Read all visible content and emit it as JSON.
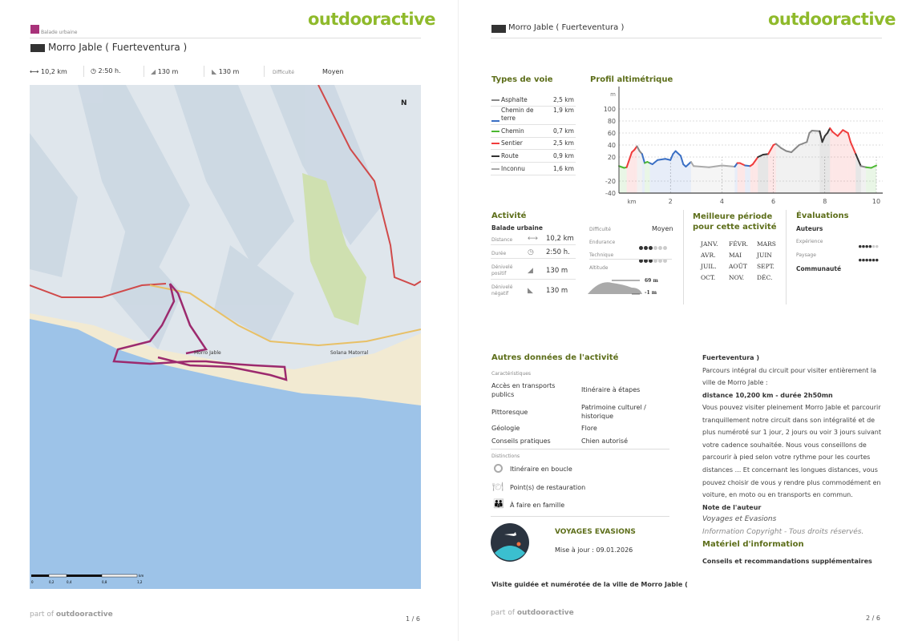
{
  "brand": "outdooractive",
  "page1": {
    "category": "Balade urbaine",
    "title": "Morro Jable ( Fuerteventura )",
    "stats": {
      "distance": "10,2 km",
      "duration": "2:50 h.",
      "ascent": "130 m",
      "descent": "130 m",
      "difficulty_label": "Difficulté",
      "difficulty": "Moyen"
    },
    "map": {
      "scale_labels": [
        "0",
        "0,2",
        "0,4",
        "0,8",
        "1,2"
      ],
      "scale_unit": "km",
      "place_label": "Morro Jable",
      "place_label2": "Solana Matorral",
      "north": "N"
    },
    "footer": {
      "part_of": "part of",
      "brand": "outdooractive",
      "page": "1 / 6"
    }
  },
  "page2": {
    "title": "Morro Jable ( Fuerteventura )",
    "types_de_voie": {
      "heading": "Types de voie",
      "items": [
        {
          "label": "Asphalte",
          "value": "2,5 km",
          "color": "#888888"
        },
        {
          "label": "Chemin de terre",
          "value": "1,9 km",
          "color": "#3a6fc4"
        },
        {
          "label": "Chemin",
          "value": "0,7 km",
          "color": "#4cb832"
        },
        {
          "label": "Sentier",
          "value": "2,5 km",
          "color": "#f03c3c"
        },
        {
          "label": "Route",
          "value": "0,9 km",
          "color": "#333333"
        },
        {
          "label": "Inconnu",
          "value": "1,6 km",
          "color": "#aaaaaa"
        }
      ]
    },
    "activite": {
      "heading": "Activité",
      "type": "Balade urbaine",
      "rows": [
        {
          "label": "Distance",
          "value": "10,2 km"
        },
        {
          "label": "Durée",
          "value": "2:50 h."
        },
        {
          "label": "Dénivelé positif",
          "value": "130 m"
        },
        {
          "label": "Dénivelé négatif",
          "value": "130 m"
        }
      ],
      "difficulty_label": "Difficulté",
      "difficulty": "Moyen",
      "endurance_label": "Endurance",
      "endurance": 3,
      "technique_label": "Technique",
      "technique": 3,
      "altitude_label": "Altitude",
      "alt_max": "69 m",
      "alt_min": "-1 m"
    },
    "periode": {
      "heading": "Meilleure période pour cette activité",
      "months": [
        "JANV.",
        "FÉVR.",
        "MARS",
        "AVR.",
        "MAI",
        "JUIN",
        "JUIL.",
        "AOÛT",
        "SEPT.",
        "OCT.",
        "NOV.",
        "DÉC."
      ]
    },
    "evaluations": {
      "heading": "Évaluations",
      "auteurs": "Auteurs",
      "experience_label": "Expérience",
      "experience": 4,
      "paysage_label": "Paysage",
      "paysage": 6,
      "communaute": "Communauté"
    },
    "autres": {
      "heading": "Autres données de l'activité",
      "caracteristiques_label": "Caractéristiques",
      "caracteristiques": [
        "Accès en transports publics",
        "Itinéraire à étapes",
        "Pittoresque",
        "Patrimoine culturel / historique",
        "Géologie",
        "Flore",
        "Conseils pratiques",
        "Chien autorisé"
      ],
      "distinctions_label": "Distinctions",
      "distinctions": [
        "Itinéraire en boucle",
        "Point(s) de restauration",
        "À faire en famille"
      ]
    },
    "author": {
      "name": "VOYAGES EVASIONS",
      "updated": "Mise à jour : 09.01.2026"
    },
    "description": {
      "intro": "Visite guidée et numérotée de la ville de Morro Jable (",
      "intro_cont": "Fuerteventura )",
      "p1": "Parcours intégral du circuit pour visiter entièrement la ville de Morro Jable :",
      "p2": "distance 10,200 km - durée 2h50mn",
      "p3": " Vous pouvez visiter pleinement Morro Jable et parcourir tranquillement notre circuit dans son intégralité et de plus numéroté sur 1 jour, 2 jours ou voir 3 jours suivant votre cadence souhaitée. Nous vous conseillons de parcourir à pied selon votre rythme pour les courtes distances ... Et concernant les longues distances, vous pouvez choisir de vous y rendre plus commodément en voiture, en moto ou en transports en commun.",
      "note_label": "Note de l'auteur",
      "note_author": "Voyages et Evasions",
      "copyright": "Information Copyright - Tous droits réservés.",
      "materiel_heading": "Matériel d'information",
      "materiel": "Conseils et recommandations supplémentaires"
    },
    "footer": {
      "part_of": "part of",
      "brand": "outdooractive",
      "page": "2 / 6"
    }
  },
  "chart_data": {
    "type": "line",
    "title": "Profil altimétrique",
    "ylabel": "m",
    "xlabel": "km",
    "xlim": [
      0,
      10
    ],
    "ylim": [
      -40,
      100
    ],
    "yticks": [
      100,
      80,
      60,
      40,
      20,
      -20,
      -40
    ],
    "xticks": [
      2,
      4,
      6,
      8,
      10
    ],
    "grid": true,
    "x": [
      0,
      0.2,
      0.3,
      0.5,
      0.6,
      0.7,
      0.8,
      0.9,
      1.0,
      1.1,
      1.2,
      1.3,
      1.5,
      1.8,
      2.0,
      2.1,
      2.2,
      2.4,
      2.5,
      2.6,
      2.8,
      2.9,
      3.5,
      4.0,
      4.5,
      4.6,
      4.7,
      4.9,
      5.1,
      5.2,
      5.4,
      5.6,
      5.8,
      6.0,
      6.1,
      6.3,
      6.5,
      6.7,
      7.0,
      7.3,
      7.4,
      7.5,
      7.8,
      7.9,
      8.0,
      8.1,
      8.2,
      8.3,
      8.5,
      8.7,
      8.9,
      9.0,
      9.2,
      9.4,
      9.6,
      9.8,
      10.0
    ],
    "y": [
      5,
      2,
      3,
      28,
      32,
      38,
      30,
      25,
      10,
      12,
      10,
      8,
      15,
      17,
      15,
      25,
      30,
      22,
      8,
      4,
      12,
      5,
      3,
      6,
      4,
      10,
      10,
      6,
      5,
      8,
      20,
      24,
      25,
      40,
      42,
      35,
      30,
      28,
      40,
      45,
      60,
      64,
      63,
      45,
      55,
      60,
      68,
      62,
      55,
      65,
      60,
      45,
      25,
      5,
      3,
      2,
      6
    ],
    "segment_types": [
      "Chemin",
      "Chemin",
      "Sentier",
      "Sentier",
      "Sentier",
      "Asphalte",
      "Asphalte",
      "Chemin de terre",
      "Chemin",
      "Chemin",
      "Chemin de terre",
      "Chemin de terre",
      "Chemin de terre",
      "Chemin de terre",
      "Chemin de terre",
      "Chemin de terre",
      "Chemin de terre",
      "Chemin de terre",
      "Chemin de terre",
      "Chemin de terre",
      "Inconnu",
      "Inconnu",
      "Inconnu",
      "Inconnu",
      "Chemin de terre",
      "Sentier",
      "Sentier",
      "Chemin de terre",
      "Sentier",
      "Sentier",
      "Route",
      "Route",
      "Sentier",
      "Sentier",
      "Asphalte",
      "Asphalte",
      "Asphalte",
      "Asphalte",
      "Asphalte",
      "Asphalte",
      "Asphalte",
      "Asphalte",
      "Route",
      "Route",
      "Route",
      "Route",
      "Sentier",
      "Sentier",
      "Sentier",
      "Sentier",
      "Sentier",
      "Sentier",
      "Route",
      "Asphalte",
      "Chemin",
      "Chemin"
    ]
  }
}
